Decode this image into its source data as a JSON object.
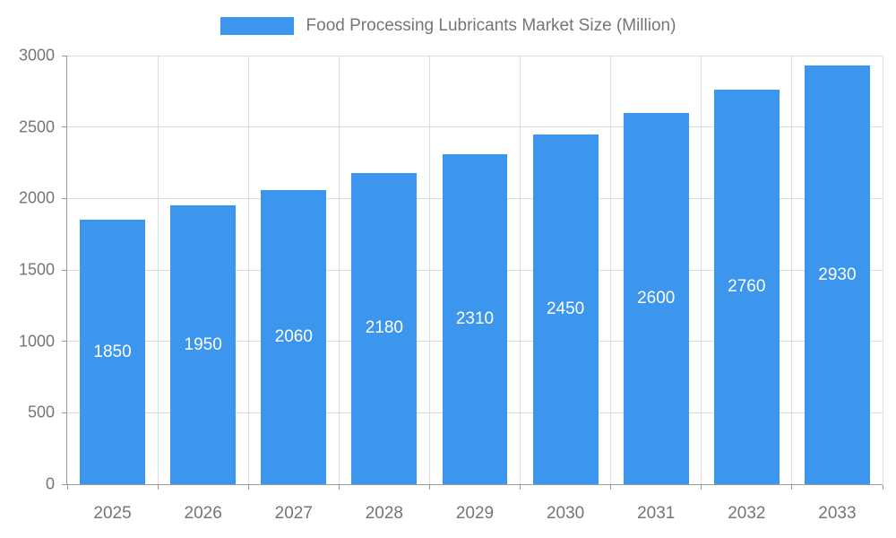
{
  "chart_data": {
    "type": "bar",
    "title": "Food Processing Lubricants Market Size (Million)",
    "categories": [
      "2025",
      "2026",
      "2027",
      "2028",
      "2029",
      "2030",
      "2031",
      "2032",
      "2033"
    ],
    "values": [
      1850,
      1950,
      2060,
      2180,
      2310,
      2450,
      2600,
      2760,
      2930
    ],
    "xlabel": "",
    "ylabel": "",
    "ylim": [
      0,
      3000
    ],
    "yticks": [
      0,
      500,
      1000,
      1500,
      2000,
      2500,
      3000
    ],
    "grid": true,
    "legend_position": "top",
    "bar_color": "#3d96ee",
    "bar_label_color": "#ffffff",
    "axis_text_color": "#757575",
    "grid_color": "#dddddd",
    "axis_line_color": "#999999"
  }
}
